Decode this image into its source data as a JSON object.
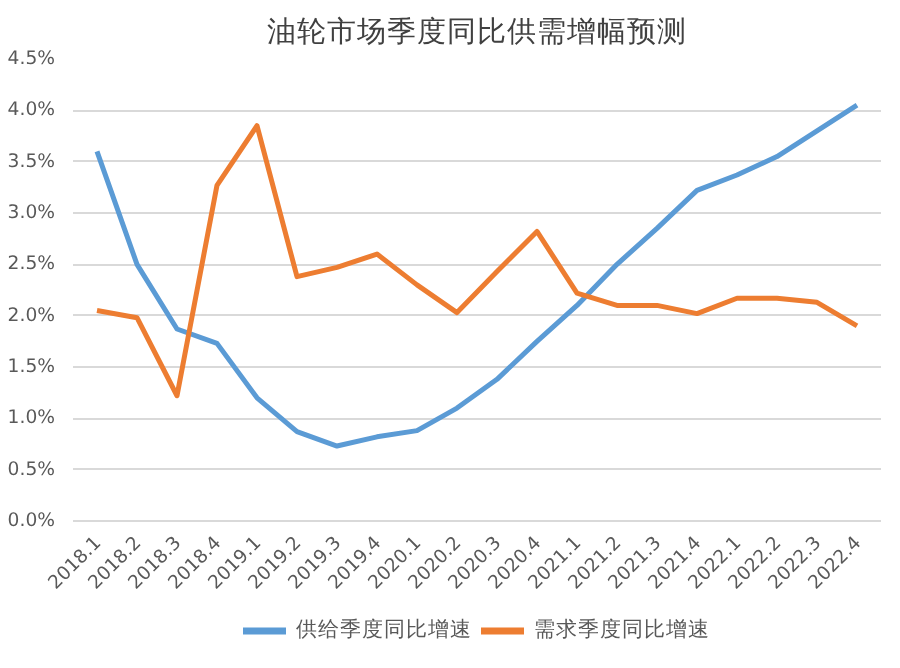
{
  "chart_data": {
    "type": "line",
    "title": "油轮市场季度同比供需增幅预测",
    "categories": [
      "2018.1",
      "2018.2",
      "2018.3",
      "2018.4",
      "2019.1",
      "2019.2",
      "2019.3",
      "2019.4",
      "2020.1",
      "2020.2",
      "2020.3",
      "2020.4",
      "2021.1",
      "2021.2",
      "2021.3",
      "2021.4",
      "2022.1",
      "2022.2",
      "2022.3",
      "2022.4"
    ],
    "series": [
      {
        "name": "供给季度同比增速",
        "color": "#5b9bd5",
        "values": [
          3.6,
          2.5,
          1.87,
          1.73,
          1.2,
          0.87,
          0.73,
          0.82,
          0.88,
          1.1,
          1.38,
          1.75,
          2.1,
          2.5,
          2.85,
          3.22,
          3.37,
          3.55,
          3.8,
          4.05
        ]
      },
      {
        "name": "需求季度同比增速",
        "color": "#ed7d31",
        "values": [
          2.05,
          1.98,
          1.22,
          3.27,
          3.85,
          2.38,
          2.47,
          2.6,
          2.3,
          2.03,
          2.43,
          2.82,
          2.22,
          2.1,
          2.1,
          2.02,
          2.17,
          2.17,
          2.13,
          1.9
        ]
      }
    ],
    "ylim": [
      0,
      4.5
    ],
    "yticks": [
      {
        "value": 0,
        "label": "0.0%"
      },
      {
        "value": 0.5,
        "label": "0.5%"
      },
      {
        "value": 1,
        "label": "1.0%"
      },
      {
        "value": 1.5,
        "label": "1.5%"
      },
      {
        "value": 2,
        "label": "2.0%"
      },
      {
        "value": 2.5,
        "label": "2.5%"
      },
      {
        "value": 3,
        "label": "3.0%"
      },
      {
        "value": 3.5,
        "label": "3.5%"
      },
      {
        "value": 4,
        "label": "4.0%"
      },
      {
        "value": 4.5,
        "label": "4.5%"
      }
    ],
    "grid": "y",
    "legend": "bottom",
    "marker": "none",
    "line_style": "solid"
  }
}
